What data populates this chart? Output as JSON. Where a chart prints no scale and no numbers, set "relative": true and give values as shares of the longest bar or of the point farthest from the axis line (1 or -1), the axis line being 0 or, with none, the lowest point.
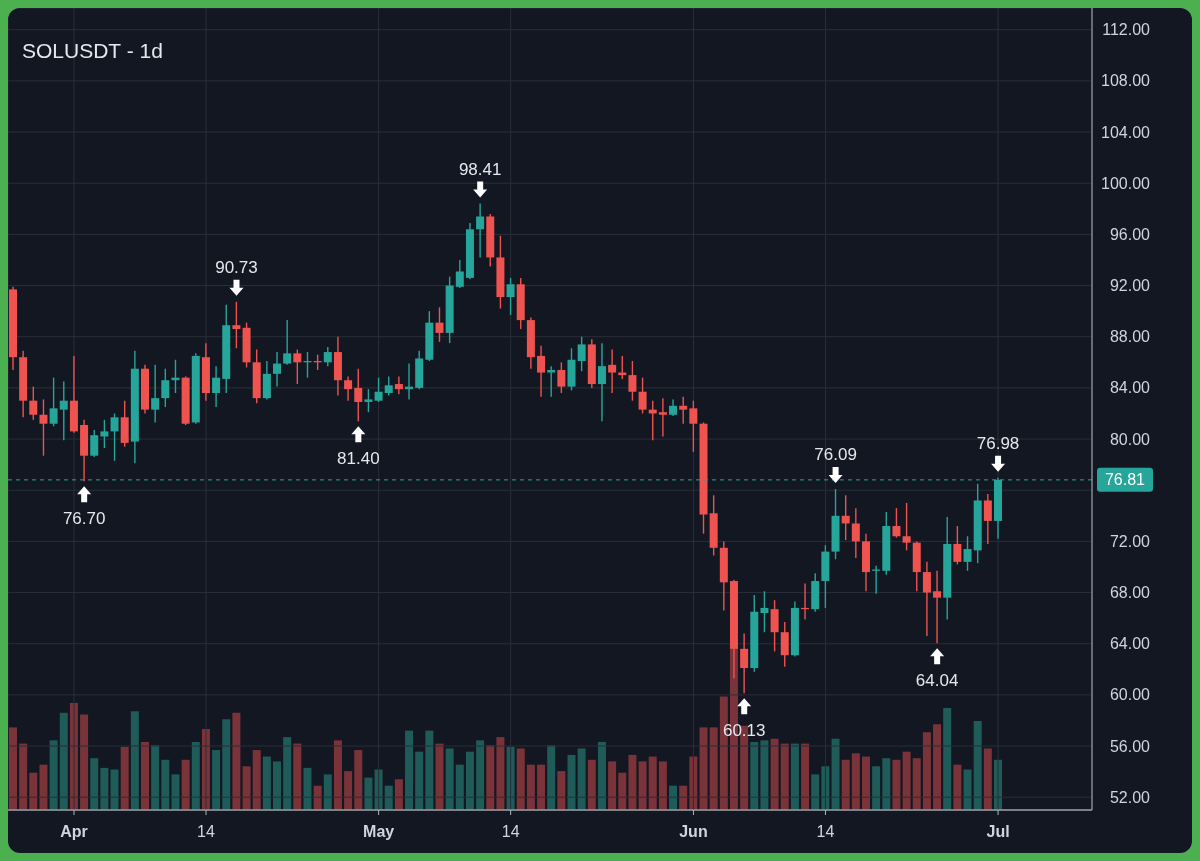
{
  "chart_data": [
    {
      "type": "candlestick",
      "title": "SOLUSDT - 1d",
      "x": [
        "--03-26",
        "--03-27",
        "--03-28",
        "--03-29",
        "--03-30",
        "--03-31",
        "--04-01",
        "--04-02",
        "--04-03",
        "--04-04",
        "--04-05",
        "--04-06",
        "--04-07",
        "--04-08",
        "--04-09",
        "--04-10",
        "--04-11",
        "--04-12",
        "--04-13",
        "--04-14",
        "--04-15",
        "--04-16",
        "--04-17",
        "--04-18",
        "--04-19",
        "--04-20",
        "--04-21",
        "--04-22",
        "--04-23",
        "--04-24",
        "--04-25",
        "--04-26",
        "--04-27",
        "--04-28",
        "--04-29",
        "--04-30",
        "--05-01",
        "--05-02",
        "--05-03",
        "--05-04",
        "--05-05",
        "--05-06",
        "--05-07",
        "--05-08",
        "--05-09",
        "--05-10",
        "--05-11",
        "--05-12",
        "--05-13",
        "--05-14",
        "--05-15",
        "--05-16",
        "--05-17",
        "--05-18",
        "--05-19",
        "--05-20",
        "--05-21",
        "--05-22",
        "--05-23",
        "--05-24",
        "--05-25",
        "--05-26",
        "--05-27",
        "--05-28",
        "--05-29",
        "--05-30",
        "--05-31",
        "--06-01",
        "--06-02",
        "--06-03",
        "--06-04",
        "--06-05",
        "--06-06",
        "--06-07",
        "--06-08",
        "--06-09",
        "--06-10",
        "--06-11",
        "--06-12",
        "--06-13",
        "--06-14",
        "--06-15",
        "--06-16",
        "--06-17",
        "--06-18",
        "--06-19",
        "--06-20",
        "--06-21",
        "--06-22",
        "--06-23",
        "--06-24",
        "--06-25",
        "--06-26",
        "--06-27",
        "--06-28",
        "--06-29",
        "--06-30",
        "--07-01"
      ],
      "ohlc": [
        [
          91.7,
          91.9,
          85.4,
          86.4
        ],
        [
          86.4,
          86.9,
          81.7,
          83.0
        ],
        [
          83.0,
          84.1,
          81.5,
          81.9
        ],
        [
          81.9,
          83.1,
          78.7,
          81.2
        ],
        [
          81.2,
          84.8,
          81.0,
          82.4
        ],
        [
          82.3,
          84.5,
          79.9,
          83.0
        ],
        [
          83.0,
          86.5,
          80.5,
          80.6
        ],
        [
          81.1,
          81.5,
          76.7,
          78.7
        ],
        [
          78.7,
          80.7,
          78.6,
          80.3
        ],
        [
          80.2,
          81.5,
          79.3,
          80.6
        ],
        [
          80.6,
          82.0,
          78.3,
          81.7
        ],
        [
          81.7,
          83.0,
          79.4,
          79.7
        ],
        [
          79.8,
          86.9,
          78.1,
          85.5
        ],
        [
          85.5,
          85.8,
          82.0,
          82.3
        ],
        [
          82.3,
          85.8,
          81.3,
          83.2
        ],
        [
          83.2,
          85.5,
          82.5,
          84.6
        ],
        [
          84.6,
          86.2,
          83.6,
          84.8
        ],
        [
          84.8,
          84.9,
          81.1,
          81.2
        ],
        [
          81.3,
          86.7,
          81.2,
          86.5
        ],
        [
          86.4,
          87.5,
          83.0,
          83.6
        ],
        [
          83.6,
          85.7,
          82.5,
          84.8
        ],
        [
          84.7,
          90.5,
          83.6,
          88.9
        ],
        [
          88.9,
          90.73,
          87.1,
          88.6
        ],
        [
          88.7,
          89.1,
          85.6,
          86.0
        ],
        [
          86.0,
          87.0,
          82.8,
          83.2
        ],
        [
          83.2,
          86.1,
          83.1,
          85.1
        ],
        [
          85.1,
          86.8,
          84.1,
          85.9
        ],
        [
          85.9,
          89.3,
          85.8,
          86.7
        ],
        [
          86.7,
          87.0,
          84.3,
          86.0
        ],
        [
          86.0,
          86.8,
          84.8,
          86.1
        ],
        [
          86.1,
          86.6,
          85.4,
          86.0
        ],
        [
          86.0,
          87.2,
          85.7,
          86.8
        ],
        [
          86.8,
          88.0,
          83.4,
          84.6
        ],
        [
          84.6,
          84.9,
          83.0,
          83.9
        ],
        [
          84.0,
          85.5,
          81.4,
          82.9
        ],
        [
          82.9,
          83.9,
          82.1,
          83.1
        ],
        [
          83.0,
          84.8,
          82.9,
          83.7
        ],
        [
          83.6,
          84.9,
          83.4,
          84.2
        ],
        [
          84.3,
          84.9,
          83.5,
          83.9
        ],
        [
          83.9,
          85.9,
          83.1,
          84.1
        ],
        [
          84.0,
          86.9,
          83.9,
          86.3
        ],
        [
          86.2,
          90.0,
          86.1,
          89.1
        ],
        [
          89.1,
          90.3,
          87.6,
          88.3
        ],
        [
          88.3,
          92.7,
          87.5,
          92.0
        ],
        [
          91.9,
          94.0,
          91.8,
          93.1
        ],
        [
          92.6,
          96.9,
          92.5,
          96.4
        ],
        [
          96.4,
          98.41,
          94.2,
          97.4
        ],
        [
          97.4,
          97.6,
          93.5,
          94.2
        ],
        [
          94.2,
          95.9,
          90.2,
          91.1
        ],
        [
          91.1,
          92.6,
          89.7,
          92.1
        ],
        [
          92.1,
          92.6,
          88.6,
          89.3
        ],
        [
          89.3,
          89.5,
          85.5,
          86.4
        ],
        [
          86.5,
          87.3,
          83.3,
          85.2
        ],
        [
          85.2,
          85.7,
          83.3,
          85.4
        ],
        [
          85.4,
          86.0,
          83.6,
          84.1
        ],
        [
          84.1,
          87.1,
          83.8,
          86.2
        ],
        [
          86.1,
          88.0,
          85.3,
          87.4
        ],
        [
          87.4,
          87.8,
          84.0,
          84.3
        ],
        [
          84.3,
          87.5,
          81.4,
          85.7
        ],
        [
          85.8,
          87.0,
          83.6,
          85.2
        ],
        [
          85.2,
          86.5,
          84.7,
          85.0
        ],
        [
          85.0,
          86.1,
          83.0,
          83.7
        ],
        [
          83.7,
          84.8,
          82.0,
          82.3
        ],
        [
          82.3,
          83.0,
          79.9,
          82.0
        ],
        [
          82.1,
          83.2,
          80.2,
          81.9
        ],
        [
          81.9,
          83.1,
          81.8,
          82.6
        ],
        [
          82.6,
          83.3,
          81.2,
          82.3
        ],
        [
          82.4,
          83.0,
          79.0,
          81.2
        ],
        [
          81.2,
          81.3,
          72.6,
          74.1
        ],
        [
          74.2,
          75.6,
          70.9,
          71.5
        ],
        [
          71.5,
          72.0,
          66.6,
          68.8
        ],
        [
          68.9,
          69.0,
          61.3,
          63.6
        ],
        [
          63.6,
          64.8,
          60.13,
          62.1
        ],
        [
          62.1,
          67.8,
          61.8,
          66.5
        ],
        [
          66.4,
          68.1,
          64.9,
          66.8
        ],
        [
          66.7,
          67.4,
          63.4,
          64.9
        ],
        [
          64.9,
          65.7,
          62.2,
          63.1
        ],
        [
          63.1,
          67.3,
          63.0,
          66.8
        ],
        [
          66.8,
          68.7,
          65.9,
          66.7
        ],
        [
          66.7,
          69.5,
          66.5,
          68.9
        ],
        [
          68.9,
          71.7,
          66.8,
          71.2
        ],
        [
          71.2,
          76.09,
          70.6,
          74.0
        ],
        [
          74.0,
          75.6,
          72.1,
          73.4
        ],
        [
          73.4,
          74.6,
          70.7,
          72.0
        ],
        [
          72.0,
          72.6,
          68.1,
          69.6
        ],
        [
          69.7,
          70.1,
          67.9,
          69.8
        ],
        [
          69.7,
          74.3,
          69.4,
          73.2
        ],
        [
          73.2,
          74.6,
          72.3,
          72.4
        ],
        [
          72.4,
          75.0,
          71.3,
          71.9
        ],
        [
          71.9,
          72.0,
          68.1,
          69.6
        ],
        [
          69.6,
          70.4,
          64.6,
          68.0
        ],
        [
          68.1,
          69.7,
          64.04,
          67.6
        ],
        [
          67.6,
          73.9,
          65.9,
          71.8
        ],
        [
          71.8,
          73.2,
          70.2,
          70.4
        ],
        [
          70.4,
          72.4,
          69.7,
          71.4
        ],
        [
          71.3,
          76.5,
          70.3,
          75.2
        ],
        [
          75.2,
          75.7,
          71.8,
          73.6
        ],
        [
          73.6,
          76.98,
          72.2,
          76.81
        ]
      ],
      "colors": [
        "#ef5350",
        "#ef5350",
        "#ef5350",
        "#ef5350",
        "#26a69a",
        "#26a69a",
        "#ef5350",
        "#ef5350",
        "#26a69a",
        "#26a69a",
        "#26a69a",
        "#ef5350",
        "#26a69a",
        "#ef5350",
        "#26a69a",
        "#26a69a",
        "#26a69a",
        "#ef5350",
        "#26a69a",
        "#ef5350",
        "#26a69a",
        "#26a69a",
        "#ef5350",
        "#ef5350",
        "#ef5350",
        "#26a69a",
        "#26a69a",
        "#26a69a",
        "#ef5350",
        "#26a69a",
        "#ef5350",
        "#26a69a",
        "#ef5350",
        "#ef5350",
        "#ef5350",
        "#26a69a",
        "#26a69a",
        "#26a69a",
        "#ef5350",
        "#26a69a",
        "#26a69a",
        "#26a69a",
        "#ef5350",
        "#26a69a",
        "#26a69a",
        "#26a69a",
        "#26a69a",
        "#ef5350",
        "#ef5350",
        "#26a69a",
        "#ef5350",
        "#ef5350",
        "#ef5350",
        "#26a69a",
        "#ef5350",
        "#26a69a",
        "#26a69a",
        "#ef5350",
        "#26a69a",
        "#ef5350",
        "#ef5350",
        "#ef5350",
        "#ef5350",
        "#ef5350",
        "#ef5350",
        "#26a69a",
        "#ef5350",
        "#ef5350",
        "#ef5350",
        "#ef5350",
        "#ef5350",
        "#ef5350",
        "#ef5350",
        "#26a69a",
        "#26a69a",
        "#ef5350",
        "#ef5350",
        "#26a69a",
        "#ef5350",
        "#26a69a",
        "#26a69a",
        "#26a69a",
        "#ef5350",
        "#ef5350",
        "#ef5350",
        "#26a69a",
        "#26a69a",
        "#ef5350",
        "#ef5350",
        "#ef5350",
        "#ef5350",
        "#ef5350",
        "#26a69a",
        "#ef5350",
        "#26a69a",
        "#26a69a",
        "#ef5350",
        "#26a69a"
      ],
      "xlim": [
        "--03-25T12:00",
        "--07-10T06:00"
      ],
      "xticks": [
        {
          "value": "--04-01",
          "label": "Apr"
        },
        {
          "value": "--04-14",
          "label": "14"
        },
        {
          "value": "--05-01",
          "label": "May"
        },
        {
          "value": "--05-14",
          "label": "14"
        },
        {
          "value": "--06-01",
          "label": "Jun"
        },
        {
          "value": "--06-14",
          "label": "14"
        },
        {
          "value": "--07-01",
          "label": "Jul"
        }
      ],
      "ylim": [
        51,
        113.7
      ],
      "yticks": [
        {
          "value": 52,
          "label": "52.00"
        },
        {
          "value": 56,
          "label": "56.00"
        },
        {
          "value": 60,
          "label": "60.00"
        },
        {
          "value": 64,
          "label": "64.00"
        },
        {
          "value": 68,
          "label": "68.00"
        },
        {
          "value": 72,
          "label": "72.00"
        },
        {
          "value": 76,
          "label": null
        },
        {
          "value": 80,
          "label": "80.00"
        },
        {
          "value": 84,
          "label": "84.00"
        },
        {
          "value": 88,
          "label": "88.00"
        },
        {
          "value": 92,
          "label": "92.00"
        },
        {
          "value": 96,
          "label": "96.00"
        },
        {
          "value": 100,
          "label": "100.00"
        },
        {
          "value": 104,
          "label": "104.00"
        },
        {
          "value": 108,
          "label": "108.00"
        },
        {
          "value": 112,
          "label": "112.00"
        }
      ],
      "grid": true,
      "ref_lines": [
        {
          "axis": "y",
          "value": 76.81,
          "label": "76.81",
          "color": "#26a69a",
          "line_style": "dashed"
        }
      ],
      "annotations": [
        {
          "text": "76.70",
          "x": "--04-02",
          "y": 76.7
        },
        {
          "text": "90.73",
          "x": "--04-17",
          "y": 90.73
        },
        {
          "text": "81.40",
          "x": "--04-29",
          "y": 81.4
        },
        {
          "text": "98.41",
          "x": "--05-11",
          "y": 98.41
        },
        {
          "text": "60.13",
          "x": "--06-06",
          "y": 60.13
        },
        {
          "text": "76.09",
          "x": "--06-15",
          "y": 76.09
        },
        {
          "text": "64.04",
          "x": "--06-25",
          "y": 64.04
        },
        {
          "text": "76.98",
          "x": "--07-01",
          "y": 76.98
        }
      ]
    },
    {
      "type": "bar",
      "relative": true,
      "tick_labels": false,
      "x": [
        "--03-26",
        "--03-27",
        "--03-28",
        "--03-29",
        "--03-30",
        "--03-31",
        "--04-01",
        "--04-02",
        "--04-03",
        "--04-04",
        "--04-05",
        "--04-06",
        "--04-07",
        "--04-08",
        "--04-09",
        "--04-10",
        "--04-11",
        "--04-12",
        "--04-13",
        "--04-14",
        "--04-15",
        "--04-16",
        "--04-17",
        "--04-18",
        "--04-19",
        "--04-20",
        "--04-21",
        "--04-22",
        "--04-23",
        "--04-24",
        "--04-25",
        "--04-26",
        "--04-27",
        "--04-28",
        "--04-29",
        "--04-30",
        "--05-01",
        "--05-02",
        "--05-03",
        "--05-04",
        "--05-05",
        "--05-06",
        "--05-07",
        "--05-08",
        "--05-09",
        "--05-10",
        "--05-11",
        "--05-12",
        "--05-13",
        "--05-14",
        "--05-15",
        "--05-16",
        "--05-17",
        "--05-18",
        "--05-19",
        "--05-20",
        "--05-21",
        "--05-22",
        "--05-23",
        "--05-24",
        "--05-25",
        "--05-26",
        "--05-27",
        "--05-28",
        "--05-29",
        "--05-30",
        "--05-31",
        "--06-01",
        "--06-02",
        "--06-03",
        "--06-04",
        "--06-05",
        "--06-06",
        "--06-07",
        "--06-08",
        "--06-09",
        "--06-10",
        "--06-11",
        "--06-12",
        "--06-13",
        "--06-14",
        "--06-15",
        "--06-16",
        "--06-17",
        "--06-18",
        "--06-19",
        "--06-20",
        "--06-21",
        "--06-22",
        "--06-23",
        "--06-24",
        "--06-25",
        "--06-26",
        "--06-27",
        "--06-28",
        "--06-29",
        "--06-30",
        "--07-01"
      ],
      "xlim": [
        "--03-25T12:00",
        "--07-10T06:00"
      ],
      "values": [
        0.51,
        0.41,
        0.23,
        0.28,
        0.43,
        0.6,
        0.66,
        0.59,
        0.32,
        0.26,
        0.25,
        0.39,
        0.61,
        0.42,
        0.4,
        0.31,
        0.22,
        0.31,
        0.42,
        0.5,
        0.37,
        0.56,
        0.6,
        0.27,
        0.37,
        0.33,
        0.3,
        0.45,
        0.41,
        0.26,
        0.15,
        0.22,
        0.43,
        0.24,
        0.37,
        0.2,
        0.25,
        0.15,
        0.19,
        0.49,
        0.36,
        0.49,
        0.41,
        0.38,
        0.28,
        0.36,
        0.43,
        0.4,
        0.45,
        0.39,
        0.38,
        0.28,
        0.28,
        0.4,
        0.24,
        0.34,
        0.38,
        0.31,
        0.42,
        0.3,
        0.23,
        0.34,
        0.3,
        0.33,
        0.3,
        0.15,
        0.15,
        0.33,
        0.51,
        0.51,
        0.7,
        1,
        0.52,
        0.42,
        0.43,
        0.44,
        0.41,
        0.41,
        0.41,
        0.22,
        0.27,
        0.44,
        0.31,
        0.35,
        0.33,
        0.27,
        0.32,
        0.31,
        0.36,
        0.32,
        0.48,
        0.53,
        0.63,
        0.28,
        0.25,
        0.55,
        0.38,
        0.31
      ],
      "colors": [
        "#7a3338",
        "#7a3338",
        "#7a3338",
        "#7a3338",
        "#1f5b58",
        "#1f5b58",
        "#7a3338",
        "#7a3338",
        "#1f5b58",
        "#1f5b58",
        "#1f5b58",
        "#7a3338",
        "#1f5b58",
        "#7a3338",
        "#1f5b58",
        "#1f5b58",
        "#1f5b58",
        "#7a3338",
        "#1f5b58",
        "#7a3338",
        "#1f5b58",
        "#1f5b58",
        "#7a3338",
        "#7a3338",
        "#7a3338",
        "#1f5b58",
        "#1f5b58",
        "#1f5b58",
        "#7a3338",
        "#1f5b58",
        "#7a3338",
        "#1f5b58",
        "#7a3338",
        "#7a3338",
        "#7a3338",
        "#1f5b58",
        "#1f5b58",
        "#1f5b58",
        "#7a3338",
        "#1f5b58",
        "#1f5b58",
        "#1f5b58",
        "#7a3338",
        "#1f5b58",
        "#1f5b58",
        "#1f5b58",
        "#1f5b58",
        "#7a3338",
        "#7a3338",
        "#1f5b58",
        "#7a3338",
        "#7a3338",
        "#7a3338",
        "#1f5b58",
        "#7a3338",
        "#1f5b58",
        "#1f5b58",
        "#7a3338",
        "#1f5b58",
        "#7a3338",
        "#7a3338",
        "#7a3338",
        "#7a3338",
        "#7a3338",
        "#7a3338",
        "#1f5b58",
        "#7a3338",
        "#7a3338",
        "#7a3338",
        "#7a3338",
        "#7a3338",
        "#7a3338",
        "#7a3338",
        "#1f5b58",
        "#1f5b58",
        "#7a3338",
        "#7a3338",
        "#1f5b58",
        "#7a3338",
        "#1f5b58",
        "#1f5b58",
        "#1f5b58",
        "#7a3338",
        "#7a3338",
        "#7a3338",
        "#1f5b58",
        "#1f5b58",
        "#7a3338",
        "#7a3338",
        "#7a3338",
        "#7a3338",
        "#7a3338",
        "#1f5b58",
        "#7a3338",
        "#1f5b58",
        "#1f5b58",
        "#7a3338",
        "#1f5b58"
      ]
    }
  ]
}
